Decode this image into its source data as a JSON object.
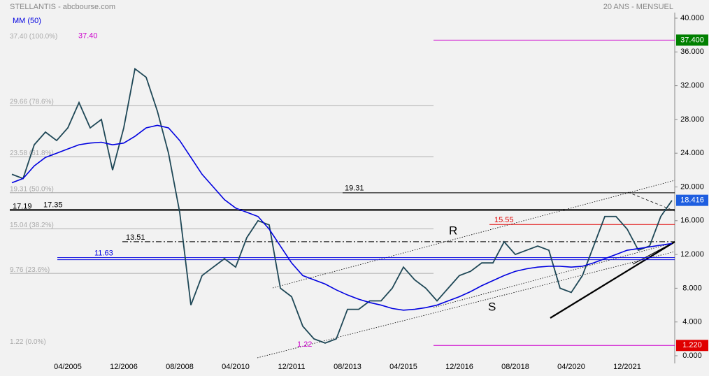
{
  "chart_data": {
    "type": "line",
    "title": "STELLANTIS - abcbourse.com",
    "subtitle": "20 ANS - MENSUEL",
    "categories": [
      null,
      null,
      null,
      null,
      null,
      "04/2005",
      null,
      null,
      null,
      null,
      "12/2006",
      null,
      null,
      null,
      null,
      "08/2008",
      null,
      null,
      null,
      null,
      "04/2010",
      null,
      null,
      null,
      null,
      "12/2011",
      null,
      null,
      null,
      null,
      "08/2013",
      null,
      null,
      null,
      null,
      "04/2015",
      null,
      null,
      null,
      null,
      "12/2016",
      null,
      null,
      null,
      null,
      "08/2018",
      null,
      null,
      null,
      null,
      "04/2020",
      null,
      null,
      null,
      null,
      "12/2021",
      null,
      null,
      null,
      null
    ],
    "series": [
      {
        "color": "#1e4756",
        "values": [
          21.5,
          21,
          25,
          26.5,
          25.5,
          27,
          30,
          27,
          28,
          22,
          27,
          34,
          33,
          29,
          24,
          17,
          6,
          9.5,
          10.5,
          11.5,
          10.5,
          14,
          16,
          15.5,
          8,
          7,
          3.5,
          2,
          1.5,
          2,
          5.5,
          5.5,
          6.5,
          6.5,
          8,
          10.5,
          9,
          8,
          6.5,
          8,
          9.5,
          10,
          11,
          11,
          13.5,
          12,
          12.5,
          13,
          12.5,
          8,
          7.5,
          9.5,
          13,
          16.5,
          16.5,
          15,
          12.5,
          13,
          16.5,
          18.4
        ]
      },
      {
        "name": "MM (50)",
        "color": "#0000e0",
        "values": [
          20.5,
          21,
          22.5,
          23.5,
          24,
          24.5,
          25,
          25.2,
          25.3,
          25,
          25.2,
          26,
          27,
          27.3,
          27,
          25.5,
          23.5,
          21.5,
          20,
          18.5,
          17.5,
          17,
          16.5,
          15,
          13,
          11,
          9.5,
          9,
          8.5,
          7.8,
          7.2,
          6.7,
          6.3,
          6,
          5.6,
          5.4,
          5.5,
          5.7,
          6,
          6.5,
          7,
          7.6,
          8.3,
          8.9,
          9.5,
          10,
          10.3,
          10.5,
          10.6,
          10.6,
          10.5,
          10.6,
          11,
          11.5,
          12,
          12.5,
          12.7,
          12.9,
          13.1,
          13.3
        ]
      }
    ],
    "ylim": [
      0,
      40
    ],
    "yticks": [
      {
        "value": 0,
        "label": "0.000"
      },
      {
        "value": 4,
        "label": "4.000"
      },
      {
        "value": 8,
        "label": "8.000"
      },
      {
        "value": 12,
        "label": "12.000"
      },
      {
        "value": 16,
        "label": "16.000"
      },
      {
        "value": 20,
        "label": "20.000"
      },
      {
        "value": 24,
        "label": "24.000"
      },
      {
        "value": 28,
        "label": "28.000"
      },
      {
        "value": 32,
        "label": "32.000"
      },
      {
        "value": 36,
        "label": "36.000"
      },
      {
        "value": 40,
        "label": "40.000"
      }
    ],
    "fib_levels": [
      {
        "value": 37.4,
        "label": "37.40 (100.0%)"
      },
      {
        "value": 29.66,
        "label": "29.66 (78.6%)"
      },
      {
        "value": 23.58,
        "label": "23.58 (61.8%)"
      },
      {
        "value": 19.31,
        "label": "19.31 (50.0%)"
      },
      {
        "value": 15.04,
        "label": "15.04 (38.2%)"
      },
      {
        "value": 9.76,
        "label": "9.76 (23.6%)"
      },
      {
        "value": 1.22,
        "label": "1.22 (0.0%)"
      }
    ],
    "price_lines": [
      {
        "value": 19.31,
        "label": "19.31",
        "color": "#000000"
      },
      {
        "value": 17.19,
        "label": "17.19",
        "color": "#000000"
      },
      {
        "value": 17.35,
        "label": "17.35",
        "color": "#000000"
      },
      {
        "value": 15.55,
        "label": "15.55",
        "color": "#e00000"
      },
      {
        "value": 13.51,
        "label": "13.51",
        "color": "#000000",
        "style": "dashdot"
      },
      {
        "value": 11.63,
        "label": "11.63",
        "color": "#0000e0",
        "style": "double"
      }
    ],
    "markers": [
      {
        "value": 37.4,
        "label": "37.40",
        "color": "#cc00cc"
      },
      {
        "value": 1.22,
        "label": "1.22",
        "color": "#cc00cc"
      }
    ],
    "axis_boxes": [
      {
        "value": 37.4,
        "label": "37.400",
        "color": "#008000"
      },
      {
        "value": 18.416,
        "label": "18.416",
        "color": "#1e5ee0"
      },
      {
        "value": 1.22,
        "label": "1.220",
        "color": "#e00000"
      }
    ],
    "annotations": [
      "R",
      "S"
    ]
  }
}
